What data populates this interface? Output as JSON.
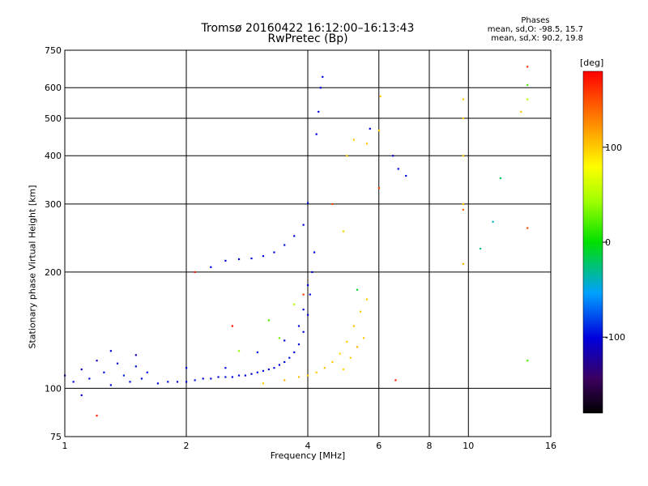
{
  "header": {
    "title": "Tromsø 20160422 16:12:00–16:13:43",
    "subtitle": "RwPretec (Bp)"
  },
  "stats": {
    "heading": "Phases",
    "line_o": "mean, sd,O: -98.5, 15.7",
    "line_x": "mean, sd,X:  90.2, 19.8"
  },
  "colorbar": {
    "unit": "[deg]",
    "ticks": [
      "100",
      "0",
      "-100"
    ],
    "range": [
      -180,
      180
    ],
    "tick_values": [
      100,
      0,
      -100
    ]
  },
  "chart_data": {
    "type": "scatter",
    "xlabel": "Frequency [MHz]",
    "ylabel": "Stationary phase Virtual Height [km]",
    "xscale": "log",
    "yscale": "log",
    "xlim": [
      1,
      16
    ],
    "ylim": [
      75,
      750
    ],
    "xticks": [
      1,
      2,
      4,
      6,
      8,
      10,
      16
    ],
    "xtick_labels": [
      "1",
      "2",
      "4",
      "6",
      "8",
      "10",
      "16"
    ],
    "yticks": [
      75,
      100,
      200,
      300,
      400,
      500,
      600,
      750
    ],
    "ytick_labels": [
      "75",
      "100",
      "200",
      "300",
      "400",
      "500",
      "600",
      "750"
    ],
    "grid": true,
    "series": [
      {
        "points": [
          [
            1.0,
            108,
            -95
          ],
          [
            1.05,
            104,
            -100
          ],
          [
            1.1,
            112,
            -105
          ],
          [
            1.15,
            106,
            -98
          ],
          [
            1.2,
            118,
            -110
          ],
          [
            1.25,
            110,
            -95
          ],
          [
            1.3,
            102,
            -100
          ],
          [
            1.35,
            116,
            -105
          ],
          [
            1.4,
            108,
            -90
          ],
          [
            1.45,
            104,
            -100
          ],
          [
            1.5,
            114,
            -98
          ],
          [
            1.55,
            106,
            -102
          ],
          [
            1.6,
            110,
            -95
          ],
          [
            1.7,
            103,
            -100
          ],
          [
            1.8,
            104,
            -98
          ],
          [
            1.9,
            104,
            -105
          ],
          [
            2.0,
            104,
            -100
          ],
          [
            2.1,
            105,
            -95
          ],
          [
            2.2,
            106,
            -100
          ],
          [
            2.3,
            106,
            -98
          ],
          [
            2.4,
            107,
            -102
          ],
          [
            2.5,
            107,
            -95
          ],
          [
            2.6,
            107,
            -100
          ],
          [
            2.7,
            108,
            -98
          ],
          [
            2.8,
            108,
            -100
          ],
          [
            2.9,
            109,
            -105
          ],
          [
            3.0,
            110,
            -100
          ],
          [
            3.1,
            111,
            -95
          ],
          [
            3.2,
            112,
            -100
          ],
          [
            3.3,
            113,
            -98
          ],
          [
            3.4,
            115,
            -102
          ],
          [
            3.5,
            117,
            -100
          ],
          [
            3.6,
            120,
            -95
          ],
          [
            3.7,
            124,
            -100
          ],
          [
            3.8,
            130,
            -98
          ],
          [
            3.9,
            140,
            -102
          ],
          [
            4.0,
            155,
            -100
          ],
          [
            4.05,
            175,
            -98
          ],
          [
            4.1,
            200,
            -102
          ],
          [
            4.15,
            225,
            -100
          ],
          [
            1.3,
            125,
            -100
          ],
          [
            1.5,
            122,
            -110
          ],
          [
            1.1,
            96,
            -100
          ],
          [
            2.0,
            113,
            -100
          ],
          [
            2.5,
            113,
            -95
          ],
          [
            3.0,
            124,
            -95
          ],
          [
            3.5,
            133,
            -100
          ],
          [
            3.8,
            145,
            -100
          ],
          [
            3.9,
            160,
            -98
          ],
          [
            4.0,
            185,
            -100
          ],
          [
            2.3,
            206,
            -100
          ],
          [
            2.5,
            214,
            -100
          ],
          [
            2.7,
            216,
            -100
          ],
          [
            2.9,
            217,
            -98
          ],
          [
            3.1,
            220,
            -100
          ],
          [
            3.3,
            225,
            -100
          ],
          [
            3.5,
            235,
            -95
          ],
          [
            3.7,
            248,
            -100
          ],
          [
            3.9,
            265,
            -100
          ],
          [
            4.0,
            302,
            -95
          ],
          [
            4.2,
            455,
            -100
          ],
          [
            4.25,
            520,
            -100
          ],
          [
            4.3,
            600,
            -100
          ],
          [
            4.35,
            640,
            -100
          ],
          [
            5.7,
            470,
            -100
          ],
          [
            6.5,
            400,
            -100
          ],
          [
            6.7,
            370,
            -100
          ],
          [
            7.0,
            355,
            -100
          ]
        ]
      },
      {
        "points": [
          [
            3.1,
            103,
            100
          ],
          [
            3.5,
            105,
            110
          ],
          [
            3.8,
            107,
            105
          ],
          [
            4.0,
            108,
            100
          ],
          [
            4.2,
            110,
            100
          ],
          [
            4.4,
            113,
            105
          ],
          [
            4.6,
            117,
            100
          ],
          [
            4.8,
            123,
            95
          ],
          [
            5.0,
            132,
            100
          ],
          [
            5.2,
            145,
            105
          ],
          [
            5.4,
            158,
            100
          ],
          [
            5.6,
            170,
            100
          ],
          [
            4.9,
            112,
            95
          ],
          [
            5.1,
            120,
            100
          ],
          [
            5.3,
            128,
            110
          ],
          [
            5.5,
            135,
            100
          ],
          [
            4.9,
            255,
            100
          ],
          [
            5.0,
            400,
            100
          ],
          [
            5.2,
            440,
            100
          ],
          [
            5.6,
            430,
            105
          ],
          [
            6.0,
            465,
            100
          ],
          [
            6.05,
            570,
            100
          ],
          [
            9.7,
            210,
            110
          ],
          [
            9.7,
            300,
            105
          ],
          [
            9.7,
            400,
            100
          ],
          [
            9.7,
            500,
            100
          ],
          [
            9.7,
            560,
            100
          ],
          [
            13.5,
            520,
            100
          ]
        ]
      },
      {
        "points": [
          [
            2.7,
            125,
            40
          ],
          [
            3.2,
            150,
            20
          ],
          [
            3.4,
            135,
            30
          ],
          [
            3.7,
            165,
            50
          ],
          [
            5.3,
            180,
            -10
          ],
          [
            14.0,
            118,
            20
          ],
          [
            14.0,
            610,
            20
          ],
          [
            14.0,
            560,
            50
          ],
          [
            12.0,
            350,
            -20
          ],
          [
            10.7,
            230,
            -30
          ],
          [
            11.5,
            270,
            -40
          ]
        ]
      },
      {
        "points": [
          [
            1.2,
            85,
            170
          ],
          [
            2.1,
            200,
            165
          ],
          [
            2.6,
            145,
            175
          ],
          [
            3.9,
            175,
            160
          ],
          [
            4.6,
            300,
            150
          ],
          [
            6.0,
            330,
            155
          ],
          [
            6.6,
            105,
            170
          ],
          [
            14.0,
            260,
            150
          ],
          [
            9.7,
            290,
            140
          ],
          [
            14.0,
            680,
            160
          ]
        ]
      }
    ]
  }
}
